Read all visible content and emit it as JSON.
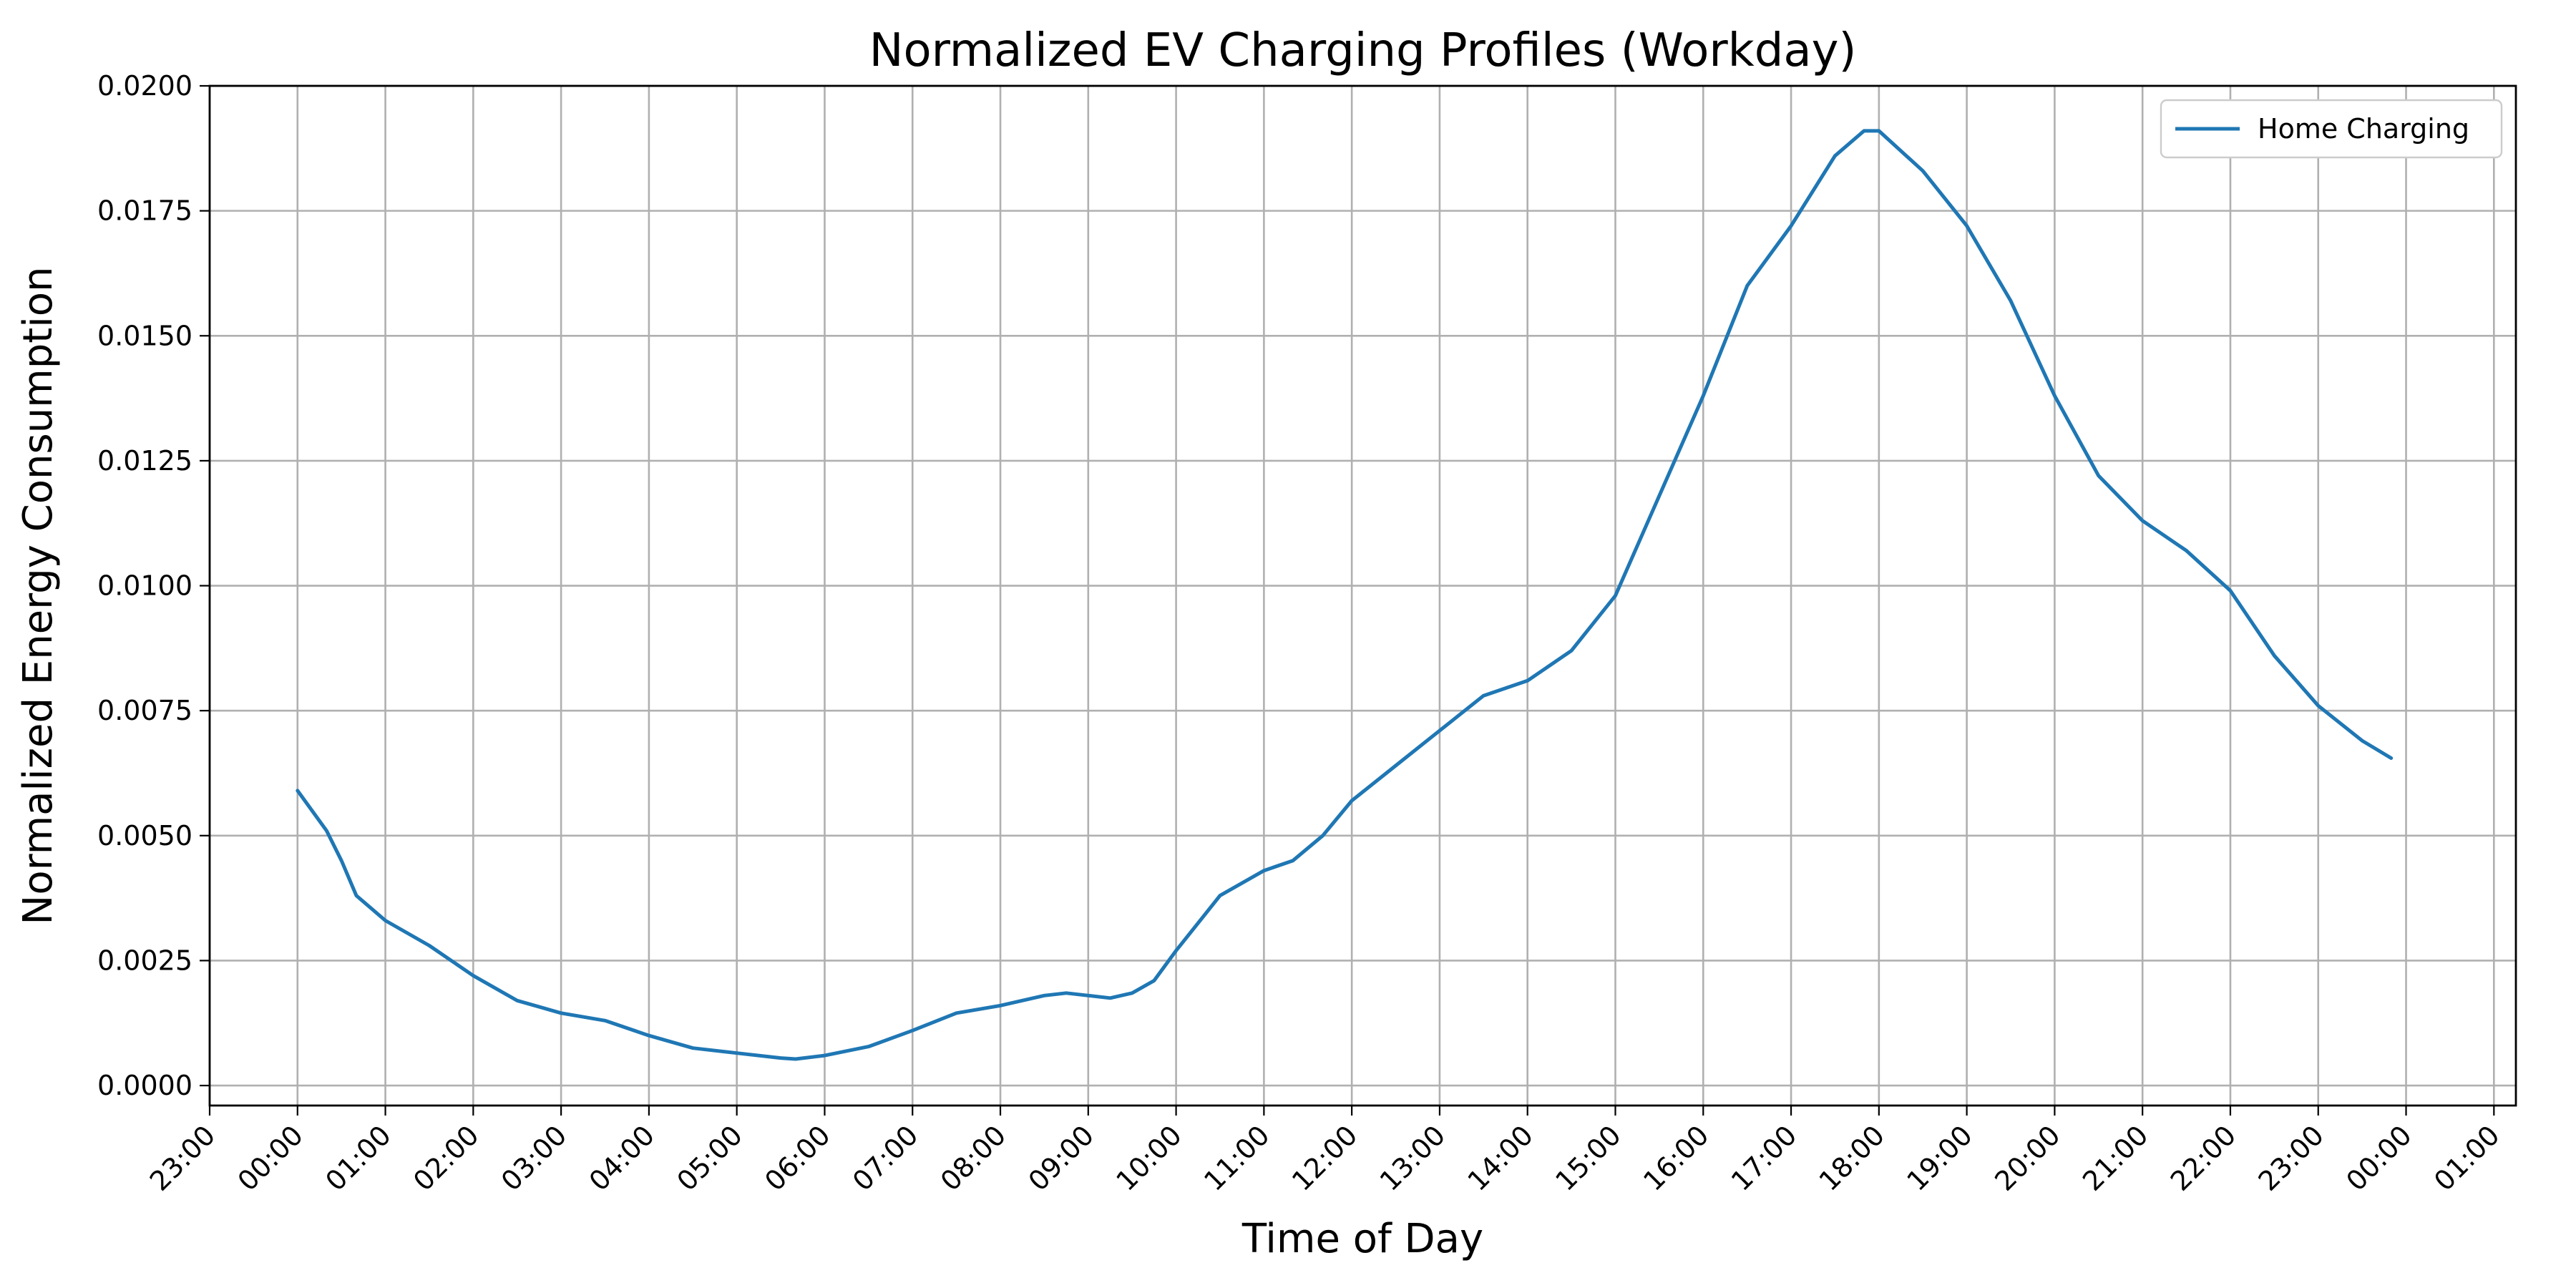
{
  "chart_data": {
    "type": "line",
    "title": "Normalized EV Charging Profiles (Workday)",
    "xlabel": "Time of Day",
    "ylabel": "Normalized Energy Consumption",
    "xlim": [
      -1.0,
      25.25
    ],
    "ylim": [
      -0.0004,
      0.02
    ],
    "grid": true,
    "legend_position": "top-right",
    "x_ticks": [
      -1,
      0,
      1,
      2,
      3,
      4,
      5,
      6,
      7,
      8,
      9,
      10,
      11,
      12,
      13,
      14,
      15,
      16,
      17,
      18,
      19,
      20,
      21,
      22,
      23,
      24,
      25
    ],
    "x_tick_labels": [
      "23:00",
      "00:00",
      "01:00",
      "02:00",
      "03:00",
      "04:00",
      "05:00",
      "06:00",
      "07:00",
      "08:00",
      "09:00",
      "10:00",
      "11:00",
      "12:00",
      "13:00",
      "14:00",
      "15:00",
      "16:00",
      "17:00",
      "18:00",
      "19:00",
      "20:00",
      "21:00",
      "22:00",
      "23:00",
      "00:00",
      "01:00"
    ],
    "y_ticks": [
      0.0,
      0.0025,
      0.005,
      0.0075,
      0.01,
      0.0125,
      0.015,
      0.0175,
      0.02
    ],
    "y_tick_labels": [
      "0.0000",
      "0.0025",
      "0.0050",
      "0.0075",
      "0.0100",
      "0.0125",
      "0.0150",
      "0.0175",
      "0.0200"
    ],
    "series": [
      {
        "name": "Home Charging",
        "color": "#1f77b4",
        "points": [
          [
            0.0,
            0.0059
          ],
          [
            0.33,
            0.0051
          ],
          [
            0.5,
            0.0045
          ],
          [
            0.67,
            0.0038
          ],
          [
            1.0,
            0.0033
          ],
          [
            1.5,
            0.0028
          ],
          [
            2.0,
            0.0022
          ],
          [
            2.5,
            0.0017
          ],
          [
            3.0,
            0.00145
          ],
          [
            3.5,
            0.0013
          ],
          [
            4.0,
            0.001
          ],
          [
            4.5,
            0.00075
          ],
          [
            5.0,
            0.00065
          ],
          [
            5.5,
            0.00055
          ],
          [
            5.67,
            0.00053
          ],
          [
            6.0,
            0.0006
          ],
          [
            6.5,
            0.00078
          ],
          [
            7.0,
            0.0011
          ],
          [
            7.5,
            0.00145
          ],
          [
            8.0,
            0.0016
          ],
          [
            8.5,
            0.0018
          ],
          [
            8.75,
            0.00185
          ],
          [
            9.0,
            0.0018
          ],
          [
            9.25,
            0.00175
          ],
          [
            9.5,
            0.00185
          ],
          [
            9.75,
            0.0021
          ],
          [
            10.0,
            0.0027
          ],
          [
            10.5,
            0.0038
          ],
          [
            11.0,
            0.0043
          ],
          [
            11.33,
            0.0045
          ],
          [
            11.67,
            0.005
          ],
          [
            12.0,
            0.0057
          ],
          [
            12.5,
            0.0064
          ],
          [
            13.0,
            0.0071
          ],
          [
            13.5,
            0.0078
          ],
          [
            14.0,
            0.0081
          ],
          [
            14.5,
            0.0087
          ],
          [
            15.0,
            0.0098
          ],
          [
            15.5,
            0.0118
          ],
          [
            16.0,
            0.0138
          ],
          [
            16.5,
            0.016
          ],
          [
            17.0,
            0.0172
          ],
          [
            17.5,
            0.0186
          ],
          [
            17.83,
            0.0191
          ],
          [
            18.0,
            0.0191
          ],
          [
            18.5,
            0.0183
          ],
          [
            19.0,
            0.0172
          ],
          [
            19.5,
            0.0157
          ],
          [
            20.0,
            0.0138
          ],
          [
            20.5,
            0.0122
          ],
          [
            21.0,
            0.0113
          ],
          [
            21.5,
            0.0107
          ],
          [
            22.0,
            0.0099
          ],
          [
            22.5,
            0.0086
          ],
          [
            23.0,
            0.0076
          ],
          [
            23.5,
            0.0069
          ],
          [
            23.83,
            0.00655
          ]
        ]
      }
    ]
  }
}
